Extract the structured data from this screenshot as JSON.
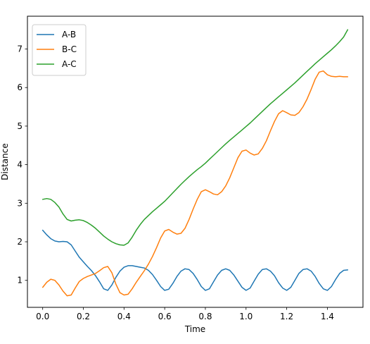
{
  "colors": {
    "A-B": "#1f77b4",
    "B-C": "#ff7f0e",
    "A-C": "#2ca02c",
    "axes": "#000000",
    "legend_border": "#cccccc"
  },
  "chart_data": {
    "type": "line",
    "title": "",
    "xlabel": "Time",
    "ylabel": "Distance",
    "xlim": [
      -0.075,
      1.575
    ],
    "ylim": [
      0.3,
      7.85
    ],
    "xticks": [
      0.0,
      0.2,
      0.4,
      0.6,
      0.8,
      1.0,
      1.2,
      1.4
    ],
    "xtick_labels": [
      "0.0",
      "0.2",
      "0.4",
      "0.6",
      "0.8",
      "1.0",
      "1.2",
      "1.4"
    ],
    "yticks": [
      1,
      2,
      3,
      4,
      5,
      6,
      7
    ],
    "ytick_labels": [
      "1",
      "2",
      "3",
      "4",
      "5",
      "6",
      "7"
    ],
    "grid": false,
    "legend_position": "upper-left",
    "series": [
      {
        "name": "A-B",
        "x": [
          0.0,
          0.02,
          0.04,
          0.06,
          0.08,
          0.1,
          0.12,
          0.14,
          0.16,
          0.18,
          0.2,
          0.22,
          0.24,
          0.26,
          0.28,
          0.3,
          0.32,
          0.34,
          0.36,
          0.38,
          0.4,
          0.42,
          0.44,
          0.46,
          0.48,
          0.5,
          0.52,
          0.54,
          0.56,
          0.58,
          0.6,
          0.62,
          0.64,
          0.66,
          0.68,
          0.7,
          0.72,
          0.74,
          0.76,
          0.78,
          0.8,
          0.82,
          0.84,
          0.86,
          0.88,
          0.9,
          0.92,
          0.94,
          0.96,
          0.98,
          1.0,
          1.02,
          1.04,
          1.06,
          1.08,
          1.1,
          1.12,
          1.14,
          1.16,
          1.18,
          1.2,
          1.22,
          1.24,
          1.26,
          1.28,
          1.3,
          1.32,
          1.34,
          1.36,
          1.38,
          1.4,
          1.42,
          1.44,
          1.46,
          1.48,
          1.5
        ],
        "y": [
          2.3,
          2.18,
          2.08,
          2.02,
          2.0,
          2.01,
          2.0,
          1.92,
          1.76,
          1.6,
          1.48,
          1.36,
          1.25,
          1.12,
          0.96,
          0.78,
          0.74,
          0.88,
          1.08,
          1.24,
          1.34,
          1.38,
          1.38,
          1.36,
          1.34,
          1.32,
          1.26,
          1.15,
          1.0,
          0.84,
          0.74,
          0.77,
          0.92,
          1.1,
          1.24,
          1.3,
          1.28,
          1.18,
          1.02,
          0.84,
          0.74,
          0.78,
          0.96,
          1.14,
          1.26,
          1.3,
          1.26,
          1.14,
          0.98,
          0.82,
          0.74,
          0.8,
          0.98,
          1.16,
          1.28,
          1.3,
          1.24,
          1.12,
          0.94,
          0.8,
          0.74,
          0.82,
          1.0,
          1.18,
          1.28,
          1.3,
          1.24,
          1.1,
          0.92,
          0.78,
          0.74,
          0.84,
          1.02,
          1.18,
          1.26,
          1.27
        ]
      },
      {
        "name": "B-C",
        "x": [
          0.0,
          0.02,
          0.04,
          0.06,
          0.08,
          0.1,
          0.12,
          0.14,
          0.16,
          0.18,
          0.2,
          0.22,
          0.24,
          0.26,
          0.28,
          0.3,
          0.32,
          0.34,
          0.36,
          0.38,
          0.4,
          0.42,
          0.44,
          0.46,
          0.48,
          0.5,
          0.52,
          0.54,
          0.56,
          0.58,
          0.6,
          0.62,
          0.64,
          0.66,
          0.68,
          0.7,
          0.72,
          0.74,
          0.76,
          0.78,
          0.8,
          0.82,
          0.84,
          0.86,
          0.88,
          0.9,
          0.92,
          0.94,
          0.96,
          0.98,
          1.0,
          1.02,
          1.04,
          1.06,
          1.08,
          1.1,
          1.12,
          1.14,
          1.16,
          1.18,
          1.2,
          1.22,
          1.24,
          1.26,
          1.28,
          1.3,
          1.32,
          1.34,
          1.36,
          1.38,
          1.4,
          1.42,
          1.44,
          1.46,
          1.48,
          1.5
        ],
        "y": [
          0.82,
          0.95,
          1.03,
          1.0,
          0.88,
          0.72,
          0.6,
          0.62,
          0.8,
          0.97,
          1.05,
          1.1,
          1.14,
          1.18,
          1.25,
          1.33,
          1.36,
          1.2,
          0.9,
          0.68,
          0.62,
          0.64,
          0.78,
          0.95,
          1.1,
          1.25,
          1.42,
          1.62,
          1.85,
          2.1,
          2.28,
          2.32,
          2.25,
          2.2,
          2.22,
          2.35,
          2.58,
          2.85,
          3.1,
          3.3,
          3.35,
          3.3,
          3.24,
          3.22,
          3.3,
          3.45,
          3.66,
          3.92,
          4.18,
          4.35,
          4.38,
          4.3,
          4.25,
          4.28,
          4.42,
          4.62,
          4.88,
          5.12,
          5.32,
          5.4,
          5.35,
          5.29,
          5.28,
          5.35,
          5.5,
          5.7,
          5.95,
          6.22,
          6.4,
          6.43,
          6.33,
          6.29,
          6.28,
          6.29,
          6.28,
          6.28
        ]
      },
      {
        "name": "A-C",
        "x": [
          0.0,
          0.02,
          0.04,
          0.06,
          0.08,
          0.1,
          0.12,
          0.14,
          0.16,
          0.18,
          0.2,
          0.22,
          0.24,
          0.26,
          0.28,
          0.3,
          0.32,
          0.34,
          0.36,
          0.38,
          0.4,
          0.42,
          0.44,
          0.46,
          0.48,
          0.5,
          0.52,
          0.54,
          0.56,
          0.58,
          0.6,
          0.62,
          0.64,
          0.66,
          0.68,
          0.7,
          0.72,
          0.74,
          0.76,
          0.78,
          0.8,
          0.82,
          0.84,
          0.86,
          0.88,
          0.9,
          0.92,
          0.94,
          0.96,
          0.98,
          1.0,
          1.02,
          1.04,
          1.06,
          1.08,
          1.1,
          1.12,
          1.14,
          1.16,
          1.18,
          1.2,
          1.22,
          1.24,
          1.26,
          1.28,
          1.3,
          1.32,
          1.34,
          1.36,
          1.38,
          1.4,
          1.42,
          1.44,
          1.46,
          1.48,
          1.5
        ],
        "y": [
          3.1,
          3.12,
          3.1,
          3.02,
          2.9,
          2.72,
          2.58,
          2.54,
          2.56,
          2.57,
          2.55,
          2.5,
          2.43,
          2.35,
          2.25,
          2.15,
          2.07,
          2.0,
          1.95,
          1.92,
          1.91,
          1.97,
          2.12,
          2.3,
          2.45,
          2.58,
          2.68,
          2.78,
          2.87,
          2.96,
          3.05,
          3.16,
          3.27,
          3.38,
          3.49,
          3.59,
          3.69,
          3.78,
          3.87,
          3.95,
          4.04,
          4.14,
          4.24,
          4.34,
          4.44,
          4.54,
          4.63,
          4.72,
          4.81,
          4.9,
          4.99,
          5.08,
          5.18,
          5.28,
          5.38,
          5.48,
          5.58,
          5.67,
          5.76,
          5.85,
          5.94,
          6.03,
          6.12,
          6.22,
          6.32,
          6.42,
          6.52,
          6.62,
          6.71,
          6.8,
          6.89,
          6.98,
          7.08,
          7.19,
          7.31,
          7.5
        ]
      }
    ]
  }
}
